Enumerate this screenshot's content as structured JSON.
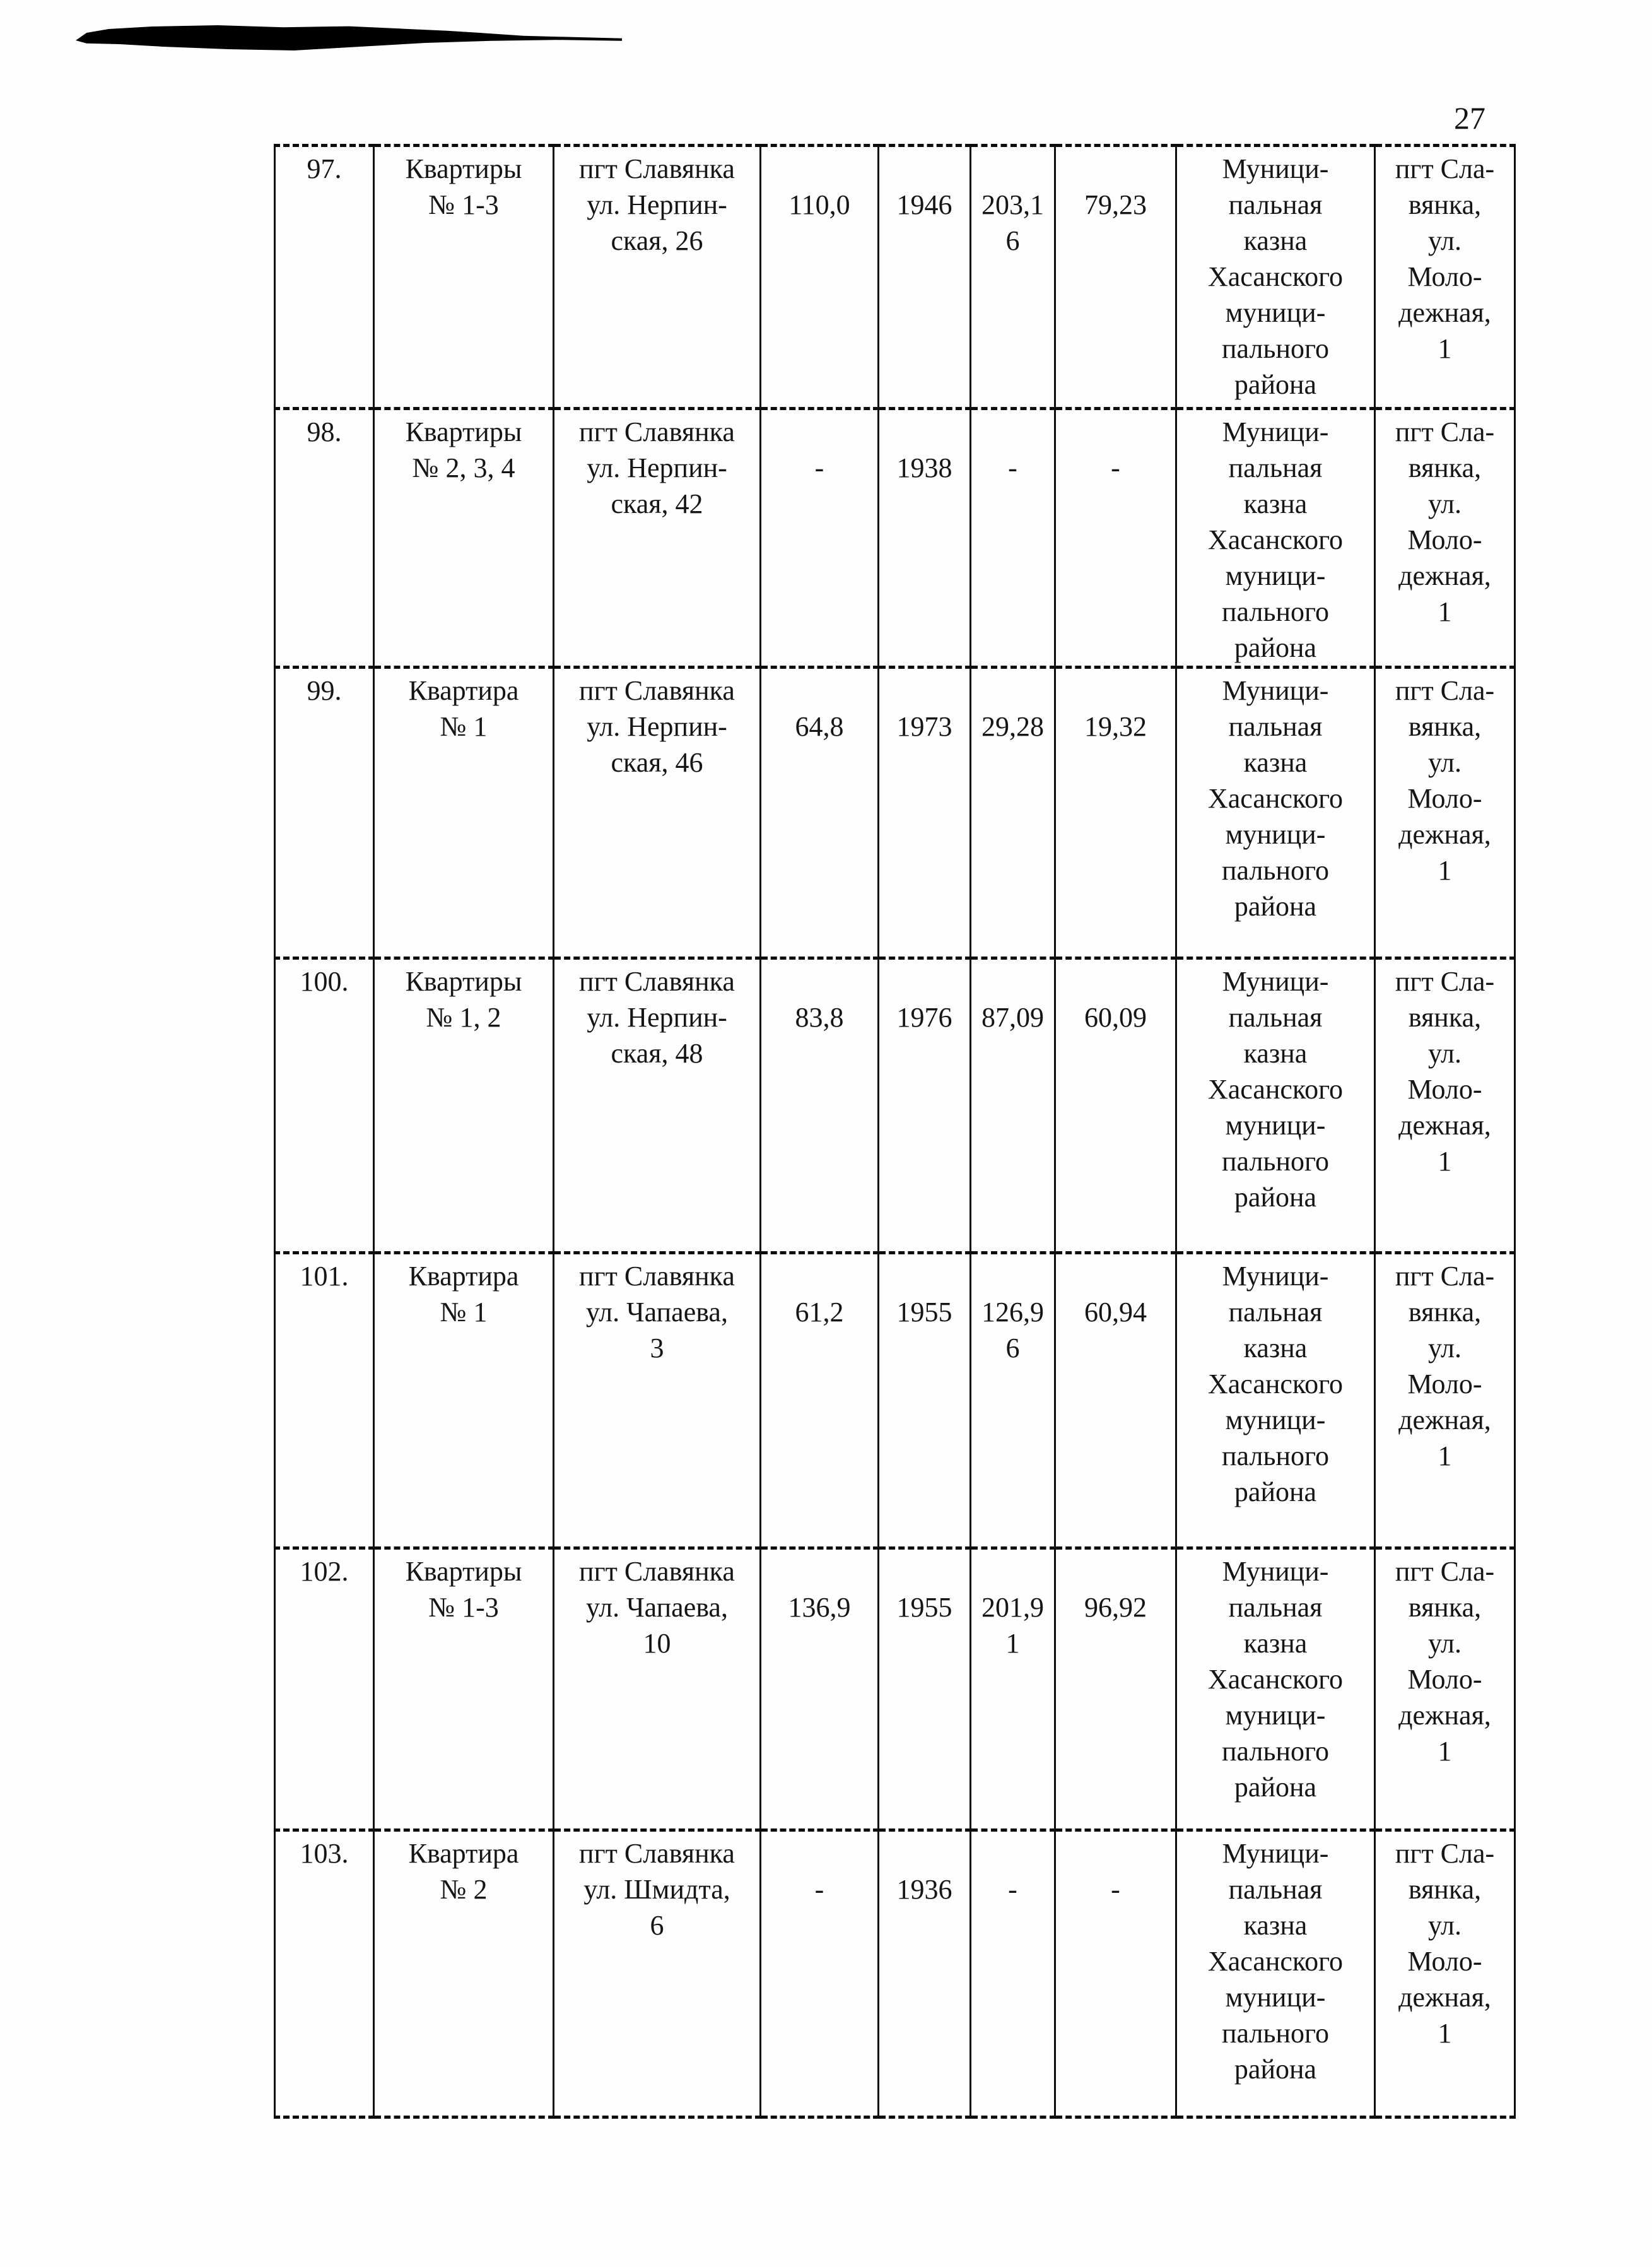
{
  "page": {
    "number": "27"
  },
  "colors": {
    "background": "#ffffff",
    "ink": "#0c0c0c",
    "text": "#151515"
  },
  "table": {
    "column_keys": [
      "num",
      "object_name",
      "address",
      "area",
      "year",
      "value_1",
      "value_2",
      "owner",
      "user_address"
    ],
    "rows": [
      {
        "num": "97.",
        "object_name": "Квартиры\n№ 1-3",
        "address": "пгт Славянка\nул. Нерпин-\nская, 26",
        "area": "110,0",
        "year": "1946",
        "value_1": "203,1\n6",
        "value_2": "79,23",
        "owner": "Муници-\nпальная\nказна\nХасанского\nмуници-\nпального\nрайона",
        "user_address": "пгт Сла-\nвянка,\nул.\nМоло-\nдежная,\n1"
      },
      {
        "num": "98.",
        "object_name": "Квартиры\n№ 2, 3, 4",
        "address": "пгт Славянка\nул. Нерпин-\nская, 42",
        "area": "-",
        "year": "1938",
        "value_1": "-",
        "value_2": "-",
        "owner": "Муници-\nпальная\nказна\nХасанского\nмуници-\nпального\nрайона",
        "user_address": "пгт Сла-\nвянка,\nул.\nМоло-\nдежная,\n1"
      },
      {
        "num": "99.",
        "object_name": "Квартира\n№ 1",
        "address": "пгт Славянка\nул. Нерпин-\nская, 46",
        "area": "64,8",
        "year": "1973",
        "value_1": "29,28",
        "value_2": "19,32",
        "owner": "Муници-\nпальная\nказна\nХасанского\nмуници-\nпального\nрайона",
        "user_address": "пгт Сла-\nвянка,\nул.\nМоло-\nдежная,\n1"
      },
      {
        "num": "100.",
        "object_name": "Квартиры\n№ 1, 2",
        "address": "пгт Славянка\nул. Нерпин-\nская, 48",
        "area": "83,8",
        "year": "1976",
        "value_1": "87,09",
        "value_2": "60,09",
        "owner": "Муници-\nпальная\nказна\nХасанского\nмуници-\nпального\nрайона",
        "user_address": "пгт Сла-\nвянка,\nул.\nМоло-\nдежная,\n1"
      },
      {
        "num": "101.",
        "object_name": "Квартира\n№ 1",
        "address": "пгт Славянка\nул. Чапаева,\n3",
        "area": "61,2",
        "year": "1955",
        "value_1": "126,9\n6",
        "value_2": "60,94",
        "owner": "Муници-\nпальная\nказна\nХасанского\nмуници-\nпального\nрайона",
        "user_address": "пгт Сла-\nвянка,\nул.\nМоло-\nдежная,\n1"
      },
      {
        "num": "102.",
        "object_name": "Квартиры\n№ 1-3",
        "address": "пгт Славянка\nул. Чапаева,\n10",
        "area": "136,9",
        "year": "1955",
        "value_1": "201,9\n1",
        "value_2": "96,92",
        "owner": "Муници-\nпальная\nказна\nХасанского\nмуници-\nпального\nрайона",
        "user_address": "пгт Сла-\nвянка,\nул.\nМоло-\nдежная,\n1"
      },
      {
        "num": "103.",
        "object_name": "Квартира\n№ 2",
        "address": "пгт Славянка\nул. Шмидта,\n6",
        "area": "-",
        "year": "1936",
        "value_1": "-",
        "value_2": "-",
        "owner": "Муници-\nпальная\nказна\nХасанского\nмуници-\nпального\nрайона",
        "user_address": "пгт Сла-\nвянка,\nул.\nМоло-\nдежная,\n1"
      }
    ]
  }
}
